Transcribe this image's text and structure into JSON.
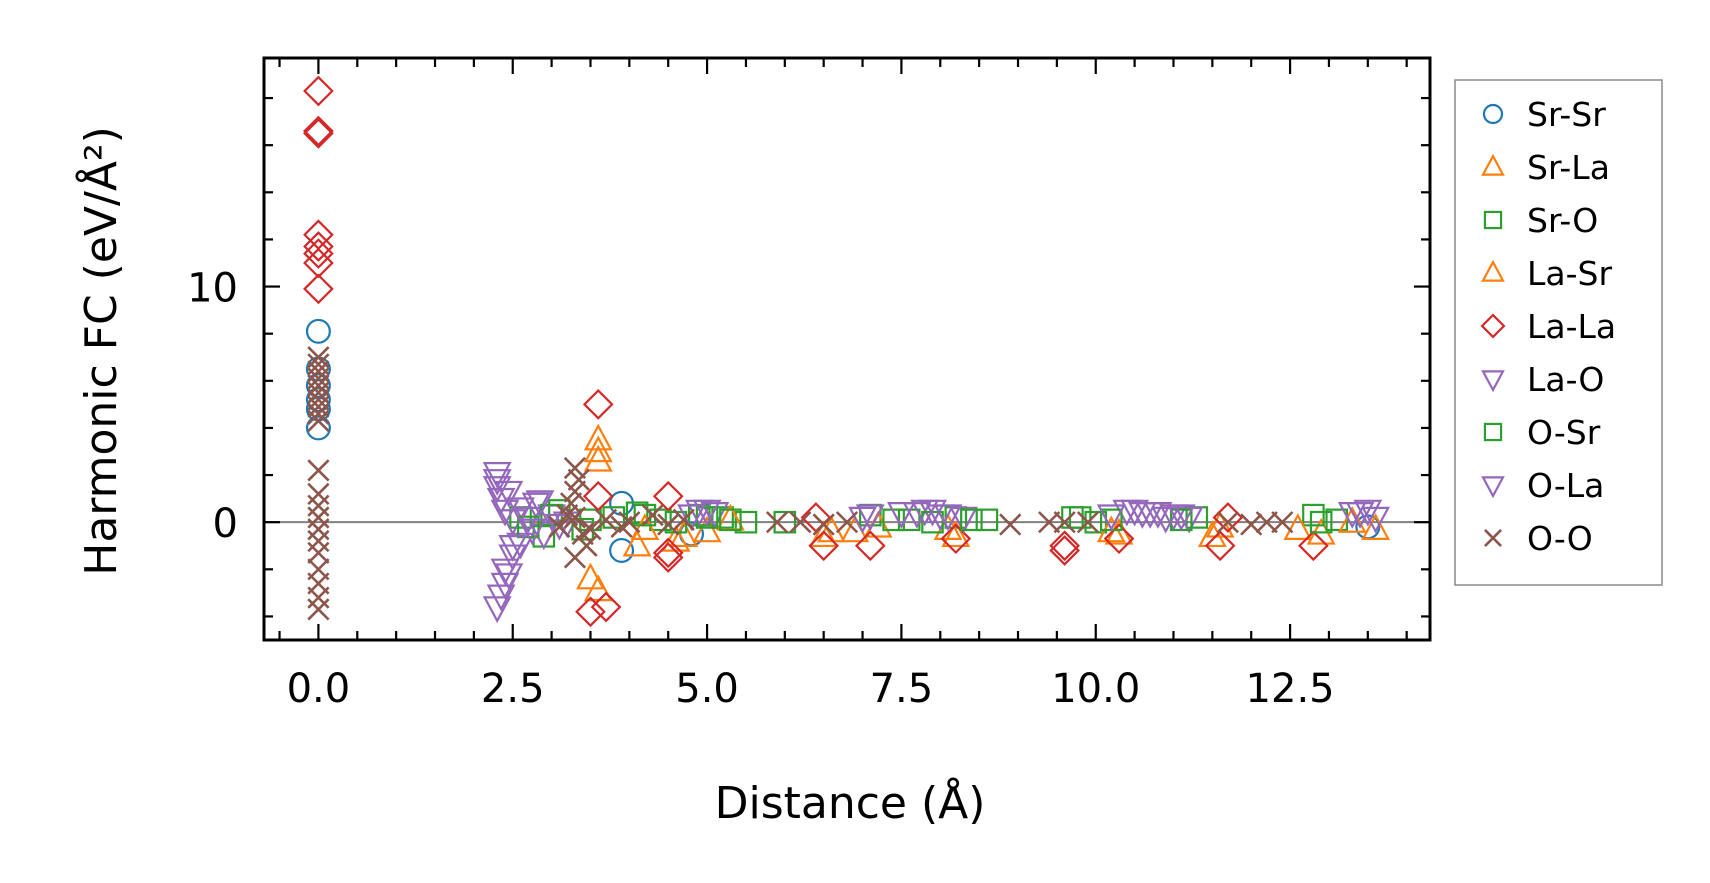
{
  "chart_data": {
    "type": "scatter",
    "title": "",
    "xlabel": "Distance (Å)",
    "ylabel": "Harmonic FC (eV/Å²)",
    "xlim": [
      -0.7,
      14.3
    ],
    "ylim": [
      -5.0,
      19.7
    ],
    "xticks": [
      0.0,
      2.5,
      5.0,
      7.5,
      10.0,
      12.5
    ],
    "xtick_labels": [
      "0.0",
      "2.5",
      "5.0",
      "7.5",
      "10.0",
      "12.5"
    ],
    "yticks": [
      0,
      10
    ],
    "ytick_labels": [
      "0",
      "10"
    ],
    "hline": 0,
    "legend_position": "outside-right",
    "series": [
      {
        "name": "Sr-Sr",
        "marker": "circle",
        "color": "#1f77b4",
        "x": [
          0.0,
          0.0,
          0.0,
          0.0,
          0.0,
          0.0,
          3.9,
          3.9,
          4.8,
          13.5
        ],
        "y": [
          8.1,
          6.5,
          5.8,
          5.2,
          4.8,
          4.0,
          0.8,
          -1.2,
          -0.5,
          -0.2
        ]
      },
      {
        "name": "Sr-La",
        "marker": "triangle-up",
        "color": "#ff7f0e",
        "x": [
          3.6,
          3.6,
          3.6,
          3.5,
          3.6,
          4.1,
          4.6,
          5.0,
          6.5,
          6.9,
          8.2,
          10.3,
          11.5,
          12.9,
          13.6
        ],
        "y": [
          3.5,
          3.0,
          2.6,
          -2.4,
          -2.9,
          -1.0,
          -0.8,
          -0.4,
          -0.6,
          -0.4,
          -0.6,
          -0.5,
          -0.6,
          -0.5,
          -0.3
        ]
      },
      {
        "name": "Sr-O",
        "marker": "square",
        "color": "#2ca02c",
        "x": [
          2.6,
          2.9,
          3.1,
          3.5,
          4.1,
          4.4,
          4.9,
          5.2,
          5.5,
          7.1,
          7.6,
          8.2,
          8.6,
          9.8,
          10.0,
          11.3,
          12.8,
          13.1
        ],
        "y": [
          0.2,
          -0.6,
          0.5,
          0.1,
          0.4,
          0.1,
          0.3,
          0.2,
          0.0,
          0.3,
          0.1,
          0.2,
          0.1,
          0.2,
          0.0,
          0.2,
          0.3,
          0.1
        ]
      },
      {
        "name": "La-Sr",
        "marker": "triangle-up",
        "color": "#ff7f0e",
        "x": [
          4.2,
          4.7,
          5.3,
          6.6,
          7.2,
          8.1,
          10.2,
          11.6,
          12.6,
          13.3
        ],
        "y": [
          -0.3,
          -0.6,
          0.1,
          -0.4,
          -0.2,
          -0.3,
          -0.4,
          -0.2,
          -0.3,
          0.0
        ]
      },
      {
        "name": "La-La",
        "marker": "diamond",
        "color": "#d62728",
        "x": [
          0.0,
          0.0,
          0.0,
          0.0,
          0.0,
          0.0,
          0.0,
          0.0,
          3.6,
          3.6,
          3.5,
          3.7,
          4.5,
          4.5,
          4.5,
          6.4,
          6.5,
          7.1,
          8.2,
          9.6,
          9.6,
          10.3,
          11.6,
          11.7,
          12.8
        ],
        "y": [
          18.3,
          16.6,
          16.5,
          12.2,
          11.7,
          11.4,
          11.0,
          9.9,
          5.0,
          1.1,
          -3.8,
          -3.6,
          1.1,
          -1.3,
          -1.5,
          0.2,
          -1.0,
          -1.0,
          -0.7,
          -1.0,
          -1.2,
          -0.7,
          -1.0,
          0.2,
          -1.0
        ]
      },
      {
        "name": "La-O",
        "marker": "triangle-down",
        "color": "#9467bd",
        "x": [
          2.3,
          2.3,
          2.3,
          2.35,
          2.35,
          2.4,
          2.4,
          2.45,
          2.5,
          2.5,
          2.6,
          2.7,
          2.8,
          2.9,
          3.0,
          3.2,
          4.9,
          5.1,
          7.1,
          7.7,
          7.9,
          8.0,
          8.3,
          10.4,
          10.6,
          10.8,
          11.0,
          11.2,
          13.4,
          13.5
        ],
        "y": [
          2.1,
          1.5,
          -3.6,
          1.0,
          -3.1,
          -2.6,
          0.5,
          -2.2,
          -1.4,
          0.1,
          -0.9,
          0.2,
          0.8,
          -0.5,
          0.3,
          0.0,
          0.5,
          0.4,
          0.3,
          0.4,
          0.5,
          0.3,
          0.2,
          0.5,
          0.4,
          0.4,
          0.3,
          0.2,
          0.4,
          0.5
        ]
      },
      {
        "name": "O-Sr",
        "marker": "square",
        "color": "#2ca02c",
        "x": [
          2.7,
          3.0,
          3.4,
          3.8,
          4.2,
          4.6,
          5.0,
          5.3,
          6.0,
          7.4,
          7.9,
          8.4,
          9.7,
          10.2,
          11.1,
          12.9
        ],
        "y": [
          -0.2,
          0.3,
          -0.3,
          0.2,
          0.3,
          0.0,
          0.2,
          0.1,
          0.0,
          0.1,
          0.0,
          0.1,
          0.2,
          0.1,
          0.1,
          0.0
        ]
      },
      {
        "name": "O-La",
        "marker": "triangle-down",
        "color": "#9467bd",
        "x": [
          2.3,
          2.4,
          2.45,
          2.5,
          2.6,
          2.75,
          2.85,
          3.1,
          4.8,
          5.0,
          7.0,
          7.5,
          7.8,
          8.1,
          10.2,
          10.5,
          10.7,
          10.9,
          11.1,
          13.3,
          13.6
        ],
        "y": [
          1.8,
          -2.0,
          1.3,
          -1.0,
          0.6,
          -0.3,
          0.9,
          -0.1,
          0.3,
          0.5,
          0.2,
          0.4,
          0.5,
          0.3,
          0.3,
          0.5,
          0.4,
          0.2,
          0.3,
          0.4,
          0.2
        ]
      },
      {
        "name": "O-O",
        "marker": "x",
        "color": "#8c564b",
        "x": [
          0.0,
          0.0,
          0.0,
          0.0,
          0.0,
          0.0,
          0.0,
          0.0,
          0.0,
          0.0,
          0.0,
          0.0,
          0.0,
          0.0,
          0.0,
          0.0,
          0.0,
          0.0,
          0.0,
          0.0,
          0.0,
          3.3,
          3.35,
          3.3,
          3.25,
          3.2,
          3.4,
          3.45,
          3.3,
          3.1,
          3.3,
          3.5,
          3.7,
          3.9,
          4.0,
          4.3,
          4.5,
          4.7,
          5.9,
          6.2,
          6.5,
          6.8,
          8.9,
          9.4,
          9.6,
          9.9,
          11.7,
          12.0,
          12.2,
          12.4
        ],
        "y": [
          7.0,
          6.7,
          6.4,
          6.1,
          5.8,
          5.5,
          5.2,
          4.9,
          4.6,
          4.3,
          2.2,
          1.2,
          0.7,
          0.2,
          -0.3,
          -0.8,
          -1.3,
          -2.0,
          -2.6,
          -3.2,
          -3.7,
          2.3,
          1.8,
          1.3,
          0.8,
          0.3,
          -0.5,
          -1.0,
          -1.5,
          -0.2,
          0.2,
          -0.3,
          0.1,
          -0.2,
          0.0,
          0.3,
          -0.1,
          0.1,
          0.0,
          0.0,
          -0.1,
          0.0,
          -0.1,
          0.0,
          0.0,
          0.0,
          0.0,
          -0.1,
          0.0,
          0.0
        ]
      }
    ]
  }
}
